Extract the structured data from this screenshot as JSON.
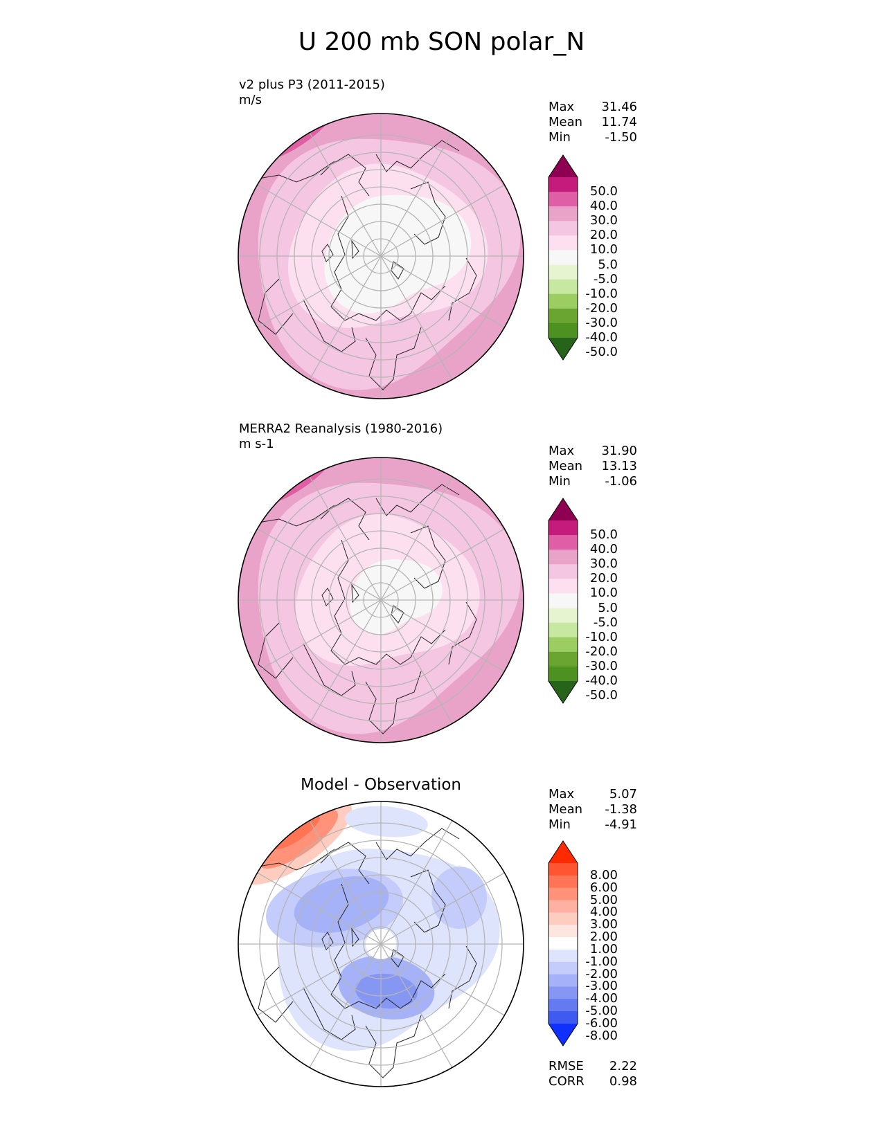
{
  "figure": {
    "title": "U 200 mb SON polar_N"
  },
  "chart_data": [
    {
      "type": "heatmap",
      "projection": "north polar stereographic",
      "title": "v2 plus P3 (2011-2015)",
      "units": "m/s",
      "stats": [
        {
          "label": "Max",
          "value": "31.46"
        },
        {
          "label": "Mean",
          "value": "11.74"
        },
        {
          "label": "Min",
          "value": "-1.50"
        }
      ],
      "levels": [
        "50.0",
        "40.0",
        "30.0",
        "20.0",
        "10.0",
        "5.0",
        "-5.0",
        "-10.0",
        "-20.0",
        "-30.0",
        "-40.0",
        "-50.0"
      ],
      "colors": [
        "#8e0152",
        "#c51b7d",
        "#de5fa3",
        "#e9a3c9",
        "#f4c6e2",
        "#fde0ef",
        "#f7f7f7",
        "#e6f5d0",
        "#c6e8a0",
        "#9ccd62",
        "#6aa531",
        "#4d9221",
        "#276419"
      ]
    },
    {
      "type": "heatmap",
      "projection": "north polar stereographic",
      "title": "MERRA2 Reanalysis (1980-2016)",
      "units": "m s-1",
      "stats": [
        {
          "label": "Max",
          "value": "31.90"
        },
        {
          "label": "Mean",
          "value": "13.13"
        },
        {
          "label": "Min",
          "value": "-1.06"
        }
      ],
      "levels": [
        "50.0",
        "40.0",
        "30.0",
        "20.0",
        "10.0",
        "5.0",
        "-5.0",
        "-10.0",
        "-20.0",
        "-30.0",
        "-40.0",
        "-50.0"
      ],
      "colors": [
        "#8e0152",
        "#c51b7d",
        "#de5fa3",
        "#e9a3c9",
        "#f4c6e2",
        "#fde0ef",
        "#f7f7f7",
        "#e6f5d0",
        "#c6e8a0",
        "#9ccd62",
        "#6aa531",
        "#4d9221",
        "#276419"
      ]
    },
    {
      "type": "heatmap",
      "projection": "north polar stereographic",
      "title": "Model - Observation",
      "stats": [
        {
          "label": "Max",
          "value": "5.07"
        },
        {
          "label": "Mean",
          "value": "-1.38"
        },
        {
          "label": "Min",
          "value": "-4.91"
        }
      ],
      "extra_stats": [
        {
          "label": "RMSE",
          "value": "2.22"
        },
        {
          "label": "CORR",
          "value": "0.98"
        }
      ],
      "levels": [
        "8.00",
        "6.00",
        "5.00",
        "4.00",
        "3.00",
        "2.00",
        "1.00",
        "-1.00",
        "-2.00",
        "-3.00",
        "-4.00",
        "-5.00",
        "-6.00",
        "-8.00"
      ],
      "colors": [
        "#ff2a00",
        "#ff5533",
        "#ff7455",
        "#ff9278",
        "#ffb0a0",
        "#ffcdc0",
        "#fde6df",
        "#ffffff",
        "#dfe4fd",
        "#c3ccfa",
        "#a5b2f7",
        "#8697f3",
        "#647af0",
        "#3f5af0",
        "#1030ff"
      ]
    }
  ]
}
